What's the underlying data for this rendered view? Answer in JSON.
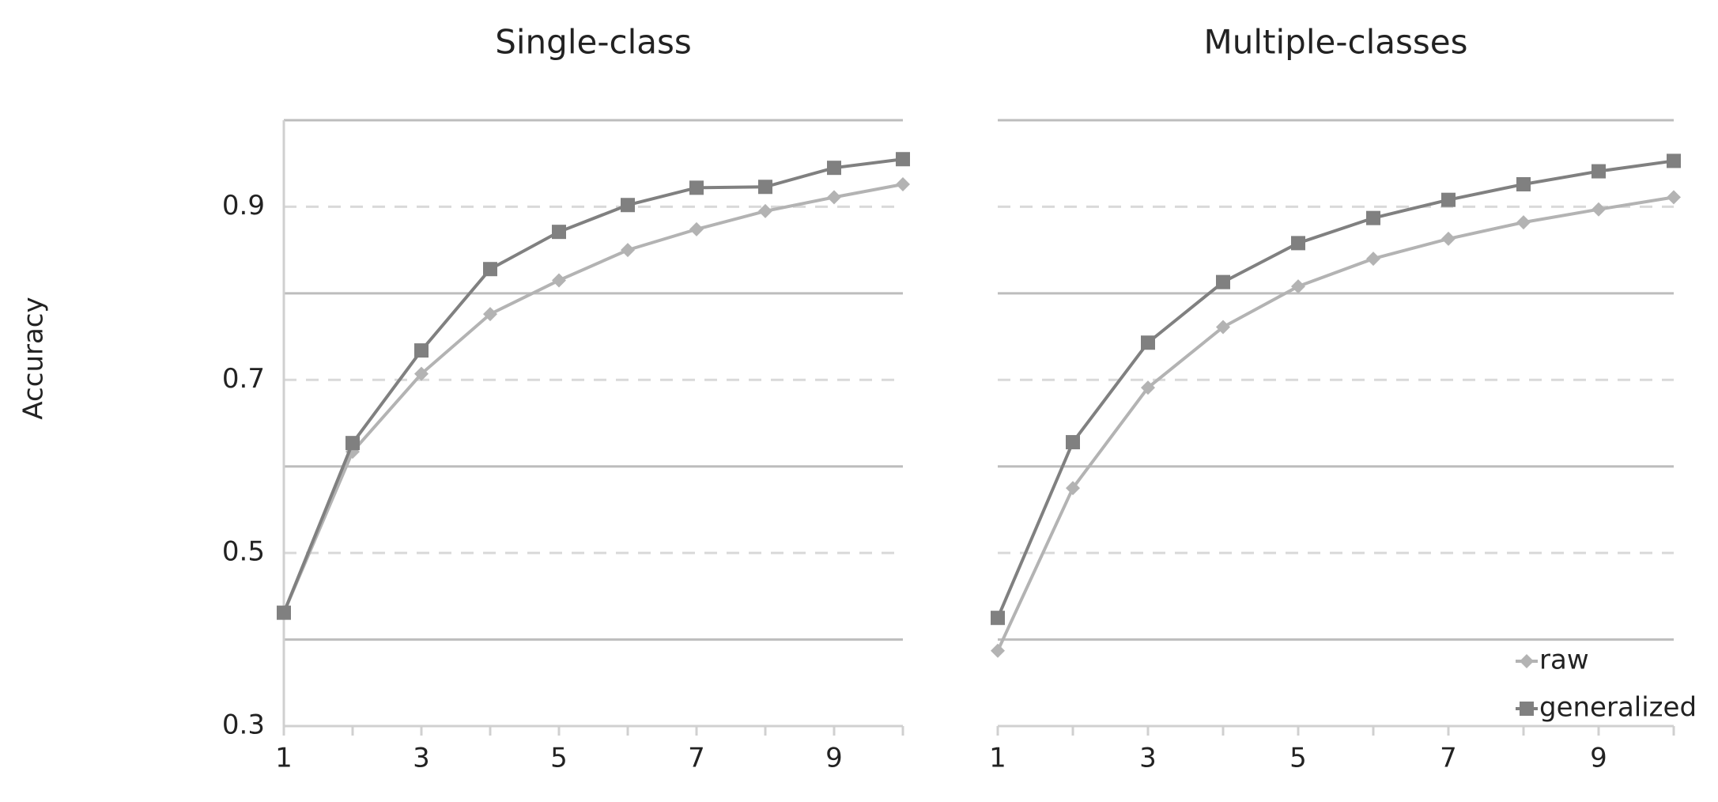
{
  "chart_data": [
    {
      "type": "line",
      "title": "Single-class",
      "ylabel": "Accuracy",
      "x": [
        1,
        2,
        3,
        4,
        5,
        6,
        7,
        8,
        9,
        10
      ],
      "xlim": [
        1,
        10
      ],
      "xticks": [
        1,
        3,
        5,
        7,
        9
      ],
      "ylim": [
        0.3,
        1.0
      ],
      "yticks": [
        0.3,
        0.5,
        0.7,
        0.9
      ],
      "ygrid_major": [
        0.4,
        0.6,
        0.8,
        1.0
      ],
      "grid": true,
      "series": [
        {
          "name": "raw",
          "color": "#b3b3b3",
          "marker": "diamond",
          "values": [
            0.431,
            0.617,
            0.707,
            0.776,
            0.815,
            0.85,
            0.874,
            0.895,
            0.911,
            0.926
          ]
        },
        {
          "name": "generalized",
          "color": "#808080",
          "marker": "square",
          "values": [
            0.431,
            0.627,
            0.734,
            0.828,
            0.871,
            0.902,
            0.922,
            0.923,
            0.945,
            0.955
          ]
        }
      ]
    },
    {
      "type": "line",
      "title": "Multiple-classes",
      "x": [
        1,
        2,
        3,
        4,
        5,
        6,
        7,
        8,
        9,
        10
      ],
      "xlim": [
        1,
        10
      ],
      "xticks": [
        1,
        3,
        5,
        7,
        9
      ],
      "ylim": [
        0.3,
        1.0
      ],
      "ygrid_minor": [
        0.5,
        0.7,
        0.9
      ],
      "ygrid_major": [
        0.4,
        0.6,
        0.8,
        1.0
      ],
      "grid": true,
      "legend": "lower right",
      "series": [
        {
          "name": "raw",
          "color": "#b3b3b3",
          "marker": "diamond",
          "values": [
            0.387,
            0.575,
            0.691,
            0.761,
            0.808,
            0.84,
            0.863,
            0.882,
            0.897,
            0.911
          ]
        },
        {
          "name": "generalized",
          "color": "#808080",
          "marker": "square",
          "values": [
            0.425,
            0.628,
            0.743,
            0.813,
            0.858,
            0.887,
            0.908,
            0.926,
            0.941,
            0.953
          ]
        }
      ]
    }
  ]
}
